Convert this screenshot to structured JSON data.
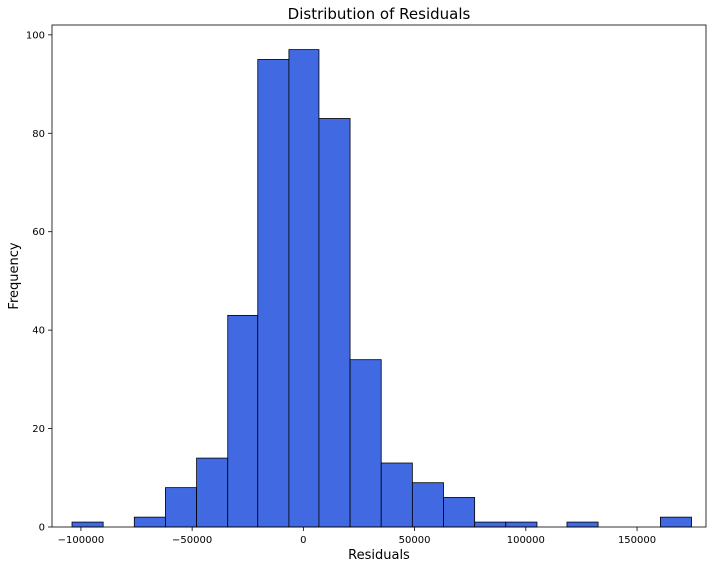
{
  "chart_data": {
    "type": "bar",
    "title": "Distribution of Residuals",
    "xlabel": "Residuals",
    "ylabel": "Frequency",
    "bar_color": "#4169e1",
    "edge_color": "#000000",
    "xlim": [
      -113000,
      181000
    ],
    "ylim": [
      0,
      102
    ],
    "bin_edges": [
      -104000,
      -90000,
      -76000,
      -62000,
      -48000,
      -34000,
      -20500,
      -6500,
      7000,
      21000,
      35000,
      49000,
      63000,
      77000,
      91000,
      105000,
      118500,
      132500,
      146500,
      160500,
      174500
    ],
    "values": [
      1,
      0,
      2,
      8,
      14,
      43,
      95,
      97,
      83,
      34,
      13,
      9,
      6,
      1,
      1,
      0,
      1,
      0,
      0,
      2
    ],
    "x_ticks": [
      -100000,
      -50000,
      0,
      50000,
      100000,
      150000
    ],
    "x_tick_labels": [
      "−100000",
      "−50000",
      "0",
      "50000",
      "100000",
      "150000"
    ],
    "y_ticks": [
      0,
      20,
      40,
      60,
      80,
      100
    ],
    "y_tick_labels": [
      "0",
      "20",
      "40",
      "60",
      "80",
      "100"
    ]
  }
}
